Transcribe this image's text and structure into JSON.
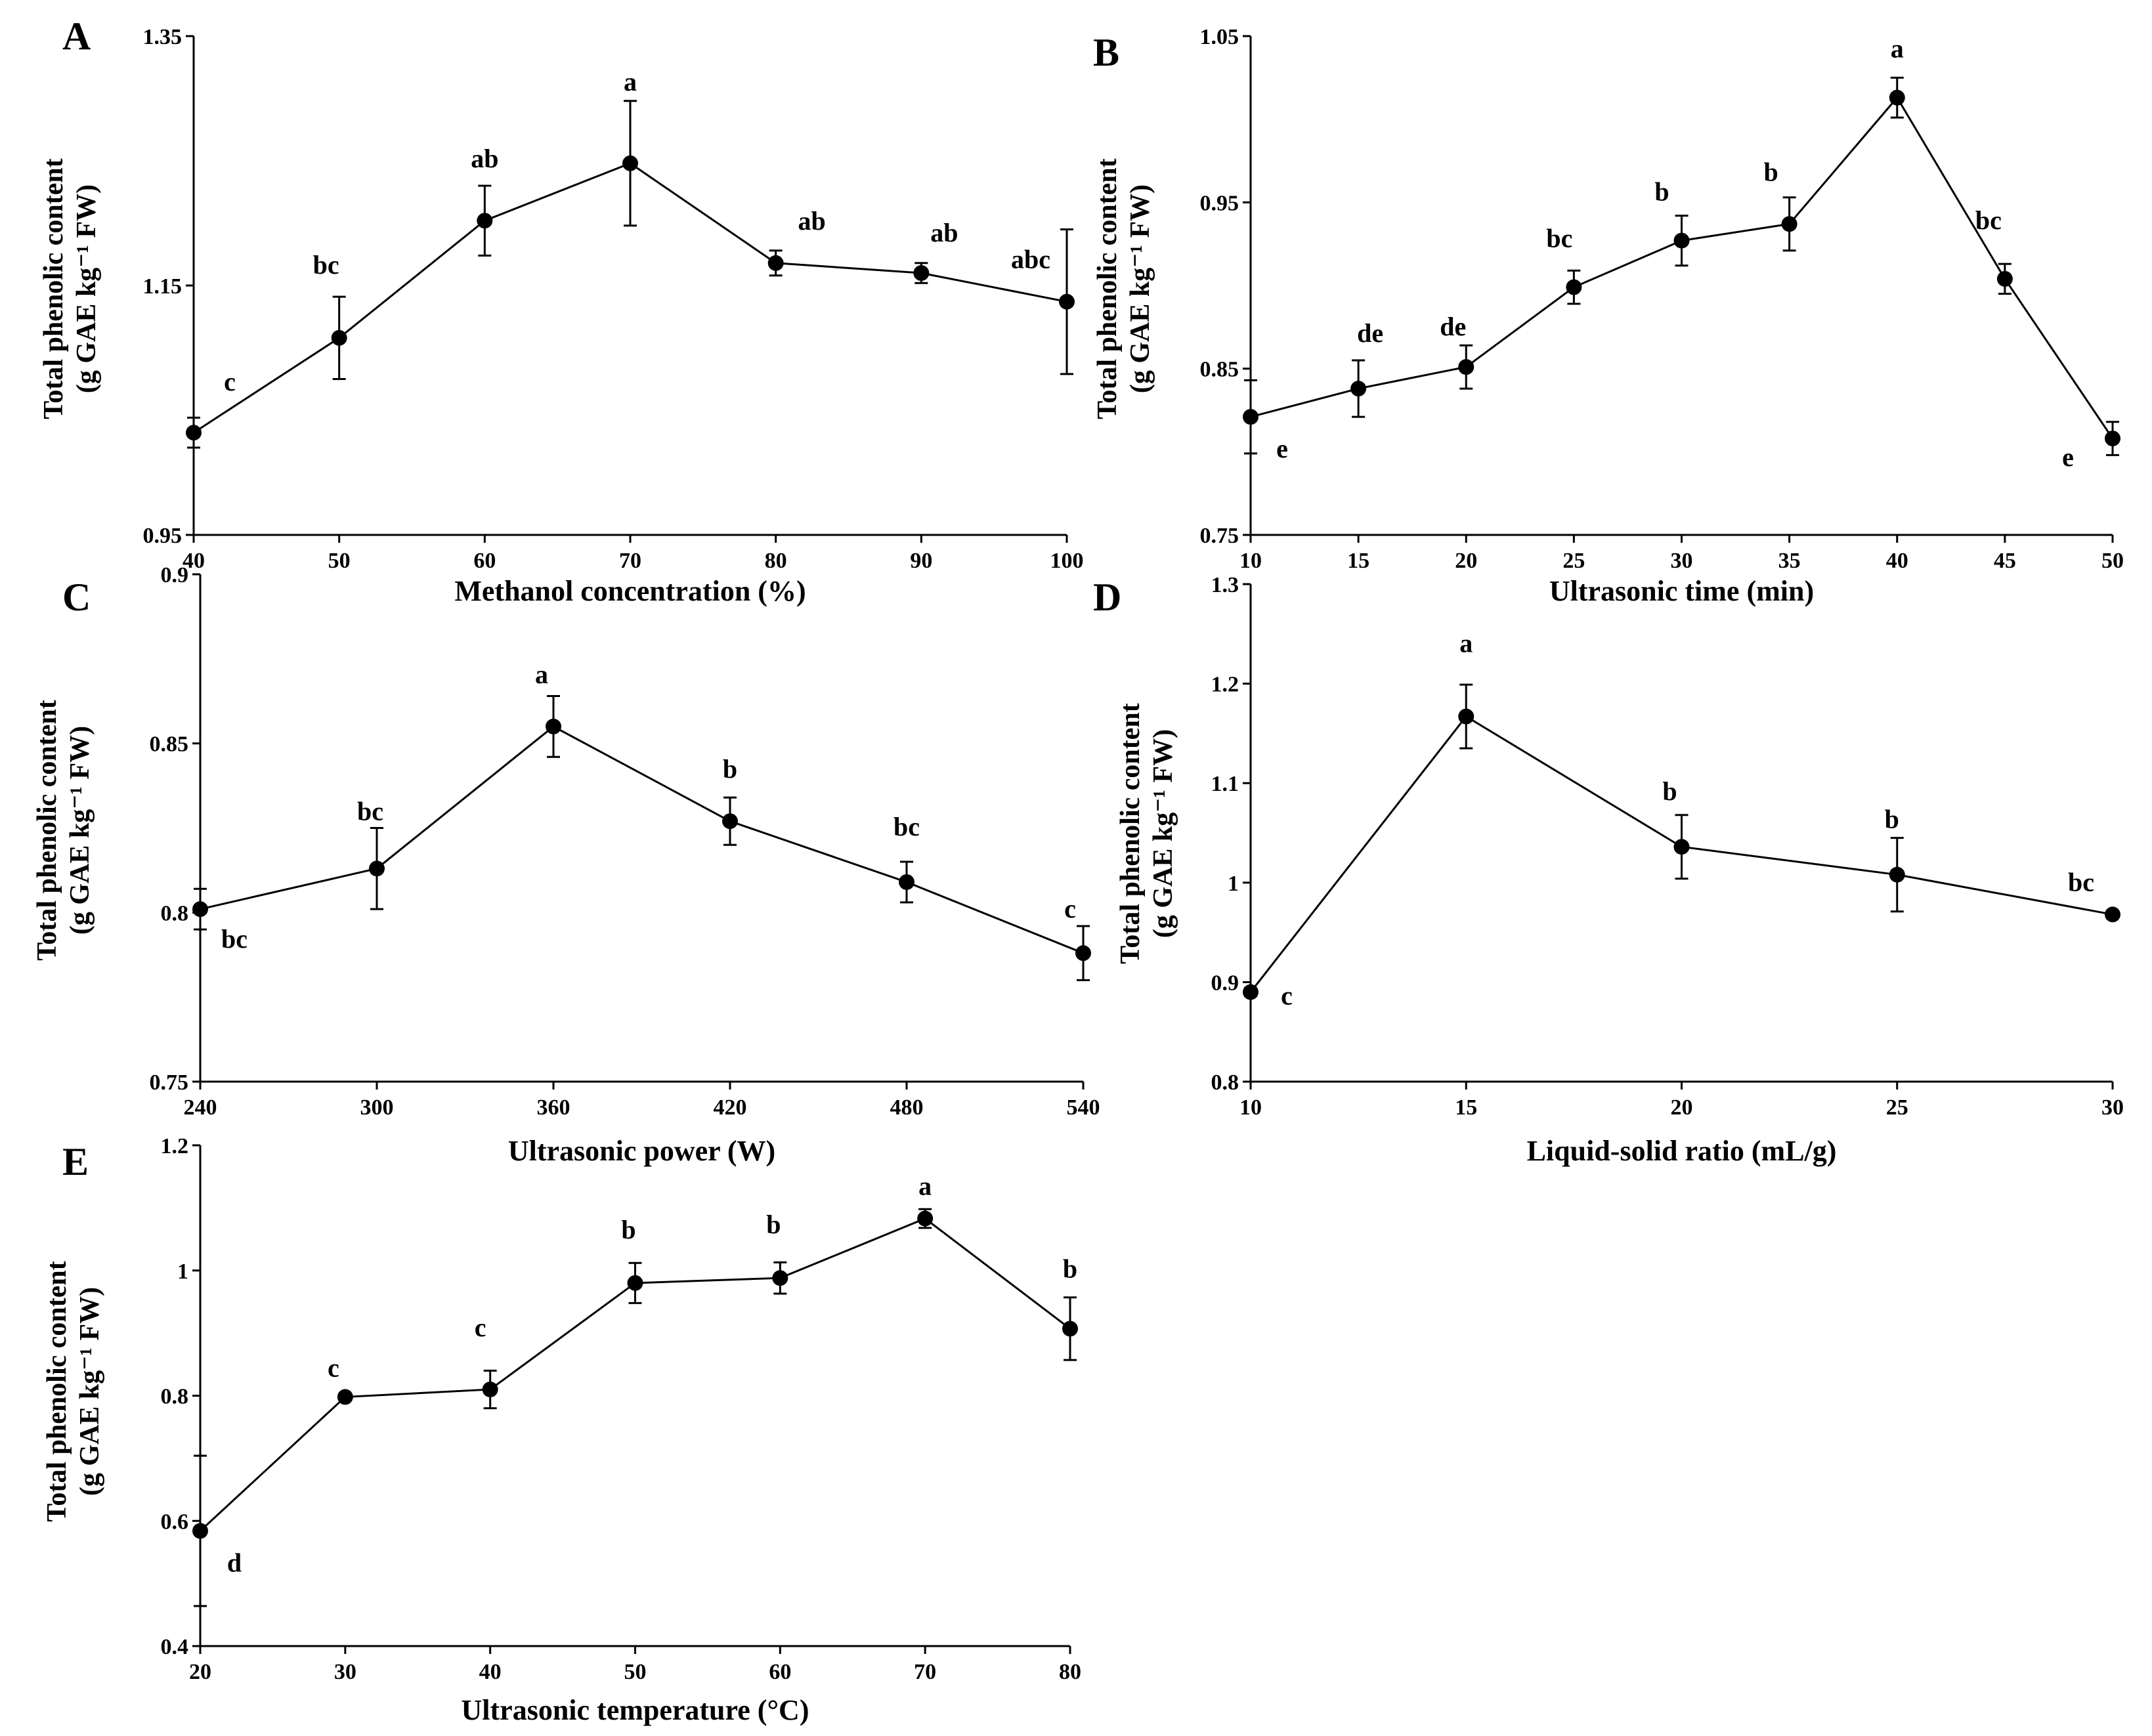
{
  "chart_data": [
    {
      "panel": "A",
      "type": "line",
      "xlabel": "Methanol concentration (%)",
      "ylabel": [
        "Total phenolic content",
        "(g GAE kg⁻¹ FW)"
      ],
      "xlim": [
        40,
        100
      ],
      "ylim": [
        0.95,
        1.35
      ],
      "xticks": [
        "40",
        "50",
        "60",
        "70",
        "80",
        "90",
        "100"
      ],
      "yticks": [
        "0.95",
        "1.15",
        "1.35"
      ],
      "x": [
        40,
        50,
        60,
        70,
        80,
        90,
        100
      ],
      "y": [
        1.032,
        1.108,
        1.202,
        1.248,
        1.168,
        1.16,
        1.137
      ],
      "err": [
        0.012,
        0.033,
        0.028,
        0.05,
        0.01,
        0.008,
        0.058
      ],
      "labels": [
        "c",
        "bc",
        "ab",
        "a",
        "ab",
        "ab",
        "abc"
      ]
    },
    {
      "panel": "B",
      "type": "line",
      "xlabel": "Ultrasonic time (min)",
      "ylabel": [
        "Total phenolic content",
        "(g GAE kg⁻¹ FW)"
      ],
      "xlim": [
        10,
        50
      ],
      "ylim": [
        0.75,
        1.05
      ],
      "xticks": [
        "10",
        "15",
        "20",
        "25",
        "30",
        "35",
        "40",
        "45",
        "50"
      ],
      "yticks": [
        "0.75",
        "0.85",
        "0.95",
        "1.05"
      ],
      "x": [
        10,
        15,
        20,
        25,
        30,
        35,
        40,
        45,
        50
      ],
      "y": [
        0.821,
        0.838,
        0.851,
        0.899,
        0.927,
        0.937,
        1.013,
        0.904,
        0.808
      ],
      "err": [
        0.022,
        0.017,
        0.013,
        0.01,
        0.015,
        0.016,
        0.012,
        0.009,
        0.01
      ],
      "labels": [
        "e",
        "de",
        "de",
        "bc",
        "b",
        "b",
        "a",
        "bc",
        "e"
      ]
    },
    {
      "panel": "C",
      "type": "line",
      "xlabel": "Ultrasonic power (W)",
      "ylabel": [
        "Total phenolic content",
        "(g GAE kg⁻¹ FW)"
      ],
      "xlim": [
        240,
        540
      ],
      "ylim": [
        0.75,
        0.9
      ],
      "xticks": [
        "240",
        "300",
        "360",
        "420",
        "480",
        "540"
      ],
      "yticks": [
        "0.75",
        "0.8",
        "0.85",
        "0.9"
      ],
      "x": [
        240,
        300,
        360,
        420,
        480,
        540
      ],
      "y": [
        0.801,
        0.813,
        0.855,
        0.827,
        0.809,
        0.788
      ],
      "err": [
        0.006,
        0.012,
        0.009,
        0.007,
        0.006,
        0.008
      ],
      "labels": [
        "bc",
        "bc",
        "a",
        "b",
        "bc",
        "c"
      ]
    },
    {
      "panel": "D",
      "type": "line",
      "xlabel": "Liquid-solid ratio (mL/g)",
      "ylabel": [
        "Total phenolic content",
        "(g GAE kg⁻¹ FW)"
      ],
      "xlim": [
        10,
        30
      ],
      "ylim": [
        0.8,
        1.3
      ],
      "xticks": [
        "10",
        "15",
        "20",
        "25",
        "30"
      ],
      "yticks": [
        "0.8",
        "0.9",
        "1",
        "1.1",
        "1.2",
        "1.3"
      ],
      "x": [
        10,
        15,
        20,
        25,
        30
      ],
      "y": [
        0.89,
        1.167,
        1.036,
        1.008,
        0.968
      ],
      "err": [
        0.004,
        0.032,
        0.032,
        0.037,
        0.003
      ],
      "labels": [
        "c",
        "a",
        "b",
        "b",
        "bc"
      ]
    },
    {
      "panel": "E",
      "type": "line",
      "xlabel": "Ultrasonic temperature (°C)",
      "ylabel": [
        "Total phenolic content",
        "(g GAE kg⁻¹ FW)"
      ],
      "xlim": [
        20,
        80
      ],
      "ylim": [
        0.4,
        1.2
      ],
      "xticks": [
        "20",
        "30",
        "40",
        "50",
        "60",
        "70",
        "80"
      ],
      "yticks": [
        "0.4",
        "0.6",
        "0.8",
        "1",
        "1.2"
      ],
      "x": [
        20,
        30,
        40,
        50,
        60,
        70,
        80
      ],
      "y": [
        0.584,
        0.798,
        0.81,
        0.98,
        0.988,
        1.083,
        0.907
      ],
      "err": [
        0.12,
        0.005,
        0.03,
        0.032,
        0.025,
        0.015,
        0.05
      ],
      "labels": [
        "d",
        "c",
        "c",
        "b",
        "b",
        "a",
        "b"
      ]
    }
  ]
}
